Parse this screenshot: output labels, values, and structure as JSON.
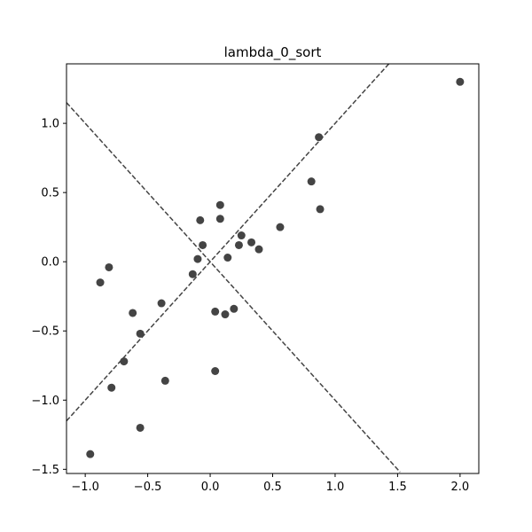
{
  "chart_data": {
    "type": "scatter",
    "title": "lambda_0_sort",
    "xlabel": "",
    "ylabel": "",
    "xlim": [
      -1.15,
      2.15
    ],
    "ylim": [
      -1.53,
      1.43
    ],
    "xticks": [
      -1.0,
      -0.5,
      0.0,
      0.5,
      1.0,
      1.5,
      2.0
    ],
    "xtick_labels": [
      "−1.0",
      "−0.5",
      "0.0",
      "0.5",
      "1.0",
      "1.5",
      "2.0"
    ],
    "yticks": [
      -1.5,
      -1.0,
      -0.5,
      0.0,
      0.5,
      1.0
    ],
    "ytick_labels": [
      "−1.5",
      "−1.0",
      "−0.5",
      "0.0",
      "0.5",
      "1.0"
    ],
    "grid": false,
    "point_color": "#444444",
    "line_color": "#444444",
    "lines": [
      {
        "x": [
          -1.15,
          1.45
        ],
        "y": [
          -1.15,
          1.45
        ],
        "style": "dashed"
      },
      {
        "x": [
          -1.15,
          1.52
        ],
        "y": [
          1.15,
          -1.52
        ],
        "style": "dashed"
      }
    ],
    "points": [
      {
        "x": 2.0,
        "y": 1.3
      },
      {
        "x": 0.87,
        "y": 0.9
      },
      {
        "x": 0.81,
        "y": 0.58
      },
      {
        "x": 0.88,
        "y": 0.38
      },
      {
        "x": 0.56,
        "y": 0.25
      },
      {
        "x": 0.39,
        "y": 0.09
      },
      {
        "x": 0.33,
        "y": 0.14
      },
      {
        "x": 0.25,
        "y": 0.19
      },
      {
        "x": 0.23,
        "y": 0.12
      },
      {
        "x": 0.14,
        "y": 0.03
      },
      {
        "x": 0.08,
        "y": 0.41
      },
      {
        "x": 0.08,
        "y": 0.31
      },
      {
        "x": -0.08,
        "y": 0.3
      },
      {
        "x": -0.06,
        "y": 0.12
      },
      {
        "x": -0.1,
        "y": 0.02
      },
      {
        "x": -0.14,
        "y": -0.09
      },
      {
        "x": -0.39,
        "y": -0.3
      },
      {
        "x": -0.62,
        "y": -0.37
      },
      {
        "x": -0.56,
        "y": -0.52
      },
      {
        "x": -0.69,
        "y": -0.72
      },
      {
        "x": -0.81,
        "y": -0.04
      },
      {
        "x": -0.88,
        "y": -0.15
      },
      {
        "x": -0.79,
        "y": -0.91
      },
      {
        "x": -0.36,
        "y": -0.86
      },
      {
        "x": 0.04,
        "y": -0.36
      },
      {
        "x": 0.12,
        "y": -0.38
      },
      {
        "x": 0.19,
        "y": -0.34
      },
      {
        "x": 0.04,
        "y": -0.79
      },
      {
        "x": -0.56,
        "y": -1.2
      },
      {
        "x": -0.96,
        "y": -1.39
      }
    ]
  }
}
